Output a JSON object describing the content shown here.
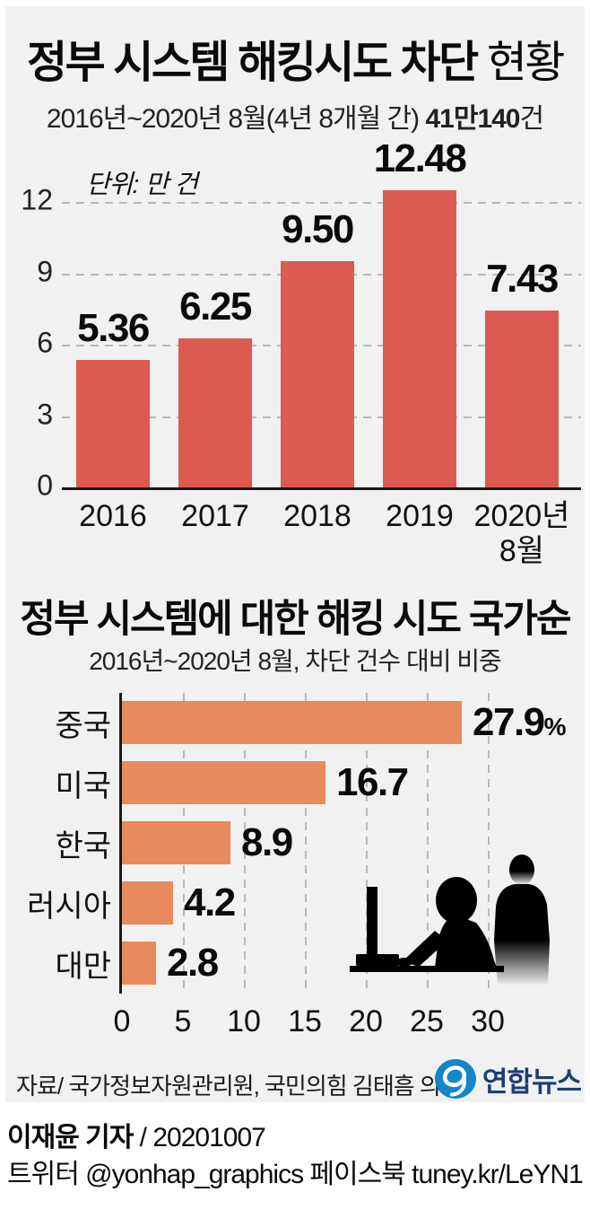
{
  "colors": {
    "background": "#f1f1f1",
    "bar_red": "#dc5a52",
    "bar_orange": "#e78a5c",
    "accent_red": "#e4564a",
    "logo_blue": "#1287c9",
    "logo_navy": "#1e3e73"
  },
  "header": {
    "title_strong": "정부 시스템 해킹시도 차단",
    "title_light": " 현황",
    "subtitle_prefix": "2016년~2020년 8월(4년 8개월 간) ",
    "subtitle_value": "41만140",
    "subtitle_suffix": "건"
  },
  "section2": {
    "title": "정부 시스템에 대한 해킹 시도 국가순",
    "subtitle": "2016년~2020년 8월, 차단 건수 대비 비중"
  },
  "source": {
    "text": "자료/ 국가정보자원관리원, 국민의힘 김태흠 의원",
    "logo_text": "연합뉴스"
  },
  "footer": {
    "byline_strong": "이재윤 기자",
    "byline_rest": " / 20201007",
    "social": "트위터 @yonhap_graphics  페이스북 tuney.kr/LeYN1"
  },
  "chart_data": [
    {
      "type": "bar",
      "title": "정부 시스템 해킹시도 차단 현황",
      "subtitle": "2016년~2020년 8월(4년 8개월 간) 41만140건",
      "unit_label": "단위: 만 건",
      "categories": [
        "2016",
        "2017",
        "2018",
        "2019",
        "2020년 8월"
      ],
      "values": [
        5.36,
        6.25,
        9.5,
        12.48,
        7.43
      ],
      "value_labels": [
        "5.36",
        "6.25",
        "9.50",
        "12.48",
        "7.43"
      ],
      "yticks": [
        12,
        9,
        6,
        3,
        0
      ],
      "ylim": [
        0,
        12.6
      ],
      "grid": "horizontal-dashed",
      "bar_color": "#dc5a52",
      "legend": "none"
    },
    {
      "type": "bar-horizontal",
      "title": "정부 시스템에 대한 해킹 시도 국가순",
      "subtitle": "2016년~2020년 8월, 차단 건수 대비 비중",
      "categories": [
        "중국",
        "미국",
        "한국",
        "러시아",
        "대만"
      ],
      "values": [
        27.9,
        16.7,
        8.9,
        4.2,
        2.8
      ],
      "value_labels": [
        "27.9",
        "16.7",
        "8.9",
        "4.2",
        "2.8"
      ],
      "value_suffixes": [
        "%",
        "",
        "",
        "",
        ""
      ],
      "xticks": [
        0,
        5,
        10,
        15,
        20,
        25,
        30
      ],
      "xlim": [
        0,
        32
      ],
      "grid": "vertical-dashed",
      "bar_color": "#e78a5c",
      "legend": "none"
    }
  ]
}
